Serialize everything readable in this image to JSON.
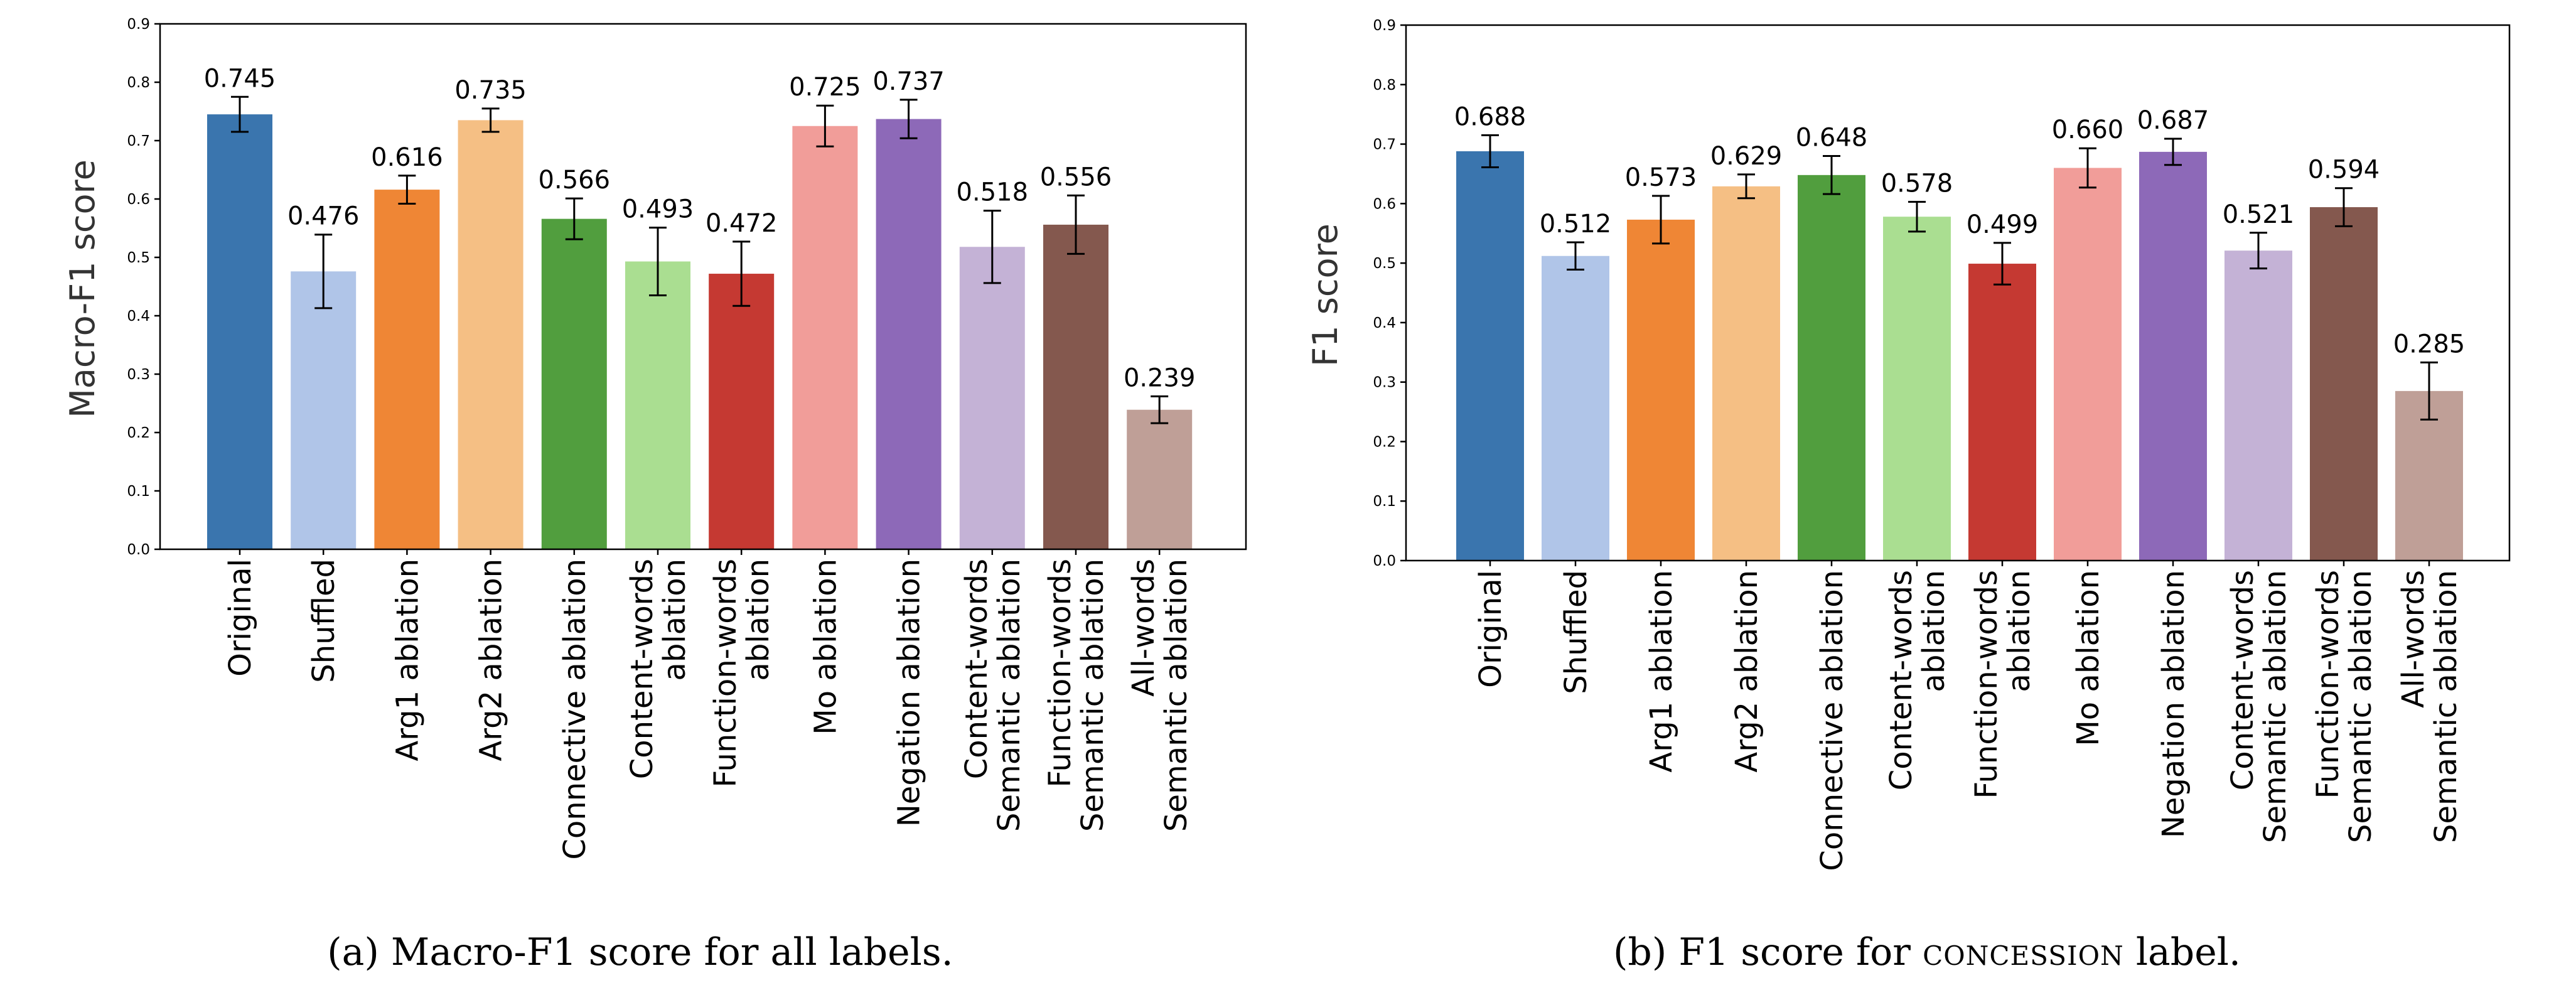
{
  "colors": [
    "#3a75ae",
    "#b0c5e8",
    "#ef8635",
    "#f5bf84",
    "#519e3e",
    "#aade91",
    "#c53932",
    "#f19d99",
    "#8d69b8",
    "#c4b2d6",
    "#84584e",
    "#bf9f97"
  ],
  "chart_data": [
    {
      "type": "bar",
      "ylabel": "Macro-F1 score",
      "ylim": [
        0,
        0.9
      ],
      "yticks": [
        "0.0",
        "0.1",
        "0.2",
        "0.3",
        "0.4",
        "0.5",
        "0.6",
        "0.7",
        "0.8",
        "0.9"
      ],
      "categories": [
        [
          "Original"
        ],
        [
          "Shuffled"
        ],
        [
          "Arg1 ablation"
        ],
        [
          "Arg2 ablation"
        ],
        [
          "Connective ablation"
        ],
        [
          "Content-words",
          "ablation"
        ],
        [
          "Function-words",
          "ablation"
        ],
        [
          "Mo ablation"
        ],
        [
          "Negation ablation"
        ],
        [
          "Content-words",
          "Semantic ablation"
        ],
        [
          "Function-words",
          "Semantic ablation"
        ],
        [
          "All-words",
          "Semantic ablation"
        ]
      ],
      "values": [
        0.745,
        0.476,
        0.616,
        0.735,
        0.566,
        0.493,
        0.472,
        0.725,
        0.737,
        0.518,
        0.556,
        0.239
      ],
      "value_labels": [
        "0.745",
        "0.476",
        "0.616",
        "0.735",
        "0.566",
        "0.493",
        "0.472",
        "0.725",
        "0.737",
        "0.518",
        "0.556",
        "0.239"
      ],
      "errors": [
        0.03,
        0.063,
        0.024,
        0.02,
        0.035,
        0.058,
        0.055,
        0.035,
        0.033,
        0.062,
        0.05,
        0.023
      ],
      "caption": "(a) Macro-F1 score for all labels."
    },
    {
      "type": "bar",
      "ylabel": "F1 score",
      "ylim": [
        0,
        0.9
      ],
      "yticks": [
        "0.0",
        "0.1",
        "0.2",
        "0.3",
        "0.4",
        "0.5",
        "0.6",
        "0.7",
        "0.8",
        "0.9"
      ],
      "categories": [
        [
          "Original"
        ],
        [
          "Shuffled"
        ],
        [
          "Arg1 ablation"
        ],
        [
          "Arg2 ablation"
        ],
        [
          "Connective ablation"
        ],
        [
          "Content-words",
          "ablation"
        ],
        [
          "Function-words",
          "ablation"
        ],
        [
          "Mo ablation"
        ],
        [
          "Negation ablation"
        ],
        [
          "Content-words",
          "Semantic ablation"
        ],
        [
          "Function-words",
          "Semantic ablation"
        ],
        [
          "All-words",
          "Semantic ablation"
        ]
      ],
      "values": [
        0.688,
        0.512,
        0.573,
        0.629,
        0.648,
        0.578,
        0.499,
        0.66,
        0.687,
        0.521,
        0.594,
        0.285
      ],
      "value_labels": [
        "0.688",
        "0.512",
        "0.573",
        "0.629",
        "0.648",
        "0.578",
        "0.499",
        "0.660",
        "0.687",
        "0.521",
        "0.594",
        "0.285"
      ],
      "errors": [
        0.027,
        0.023,
        0.04,
        0.02,
        0.032,
        0.025,
        0.035,
        0.033,
        0.022,
        0.03,
        0.032,
        0.048
      ],
      "caption_prefix": "(b) F1 score for ",
      "caption_term": "concession",
      "caption_suffix": " label."
    }
  ]
}
